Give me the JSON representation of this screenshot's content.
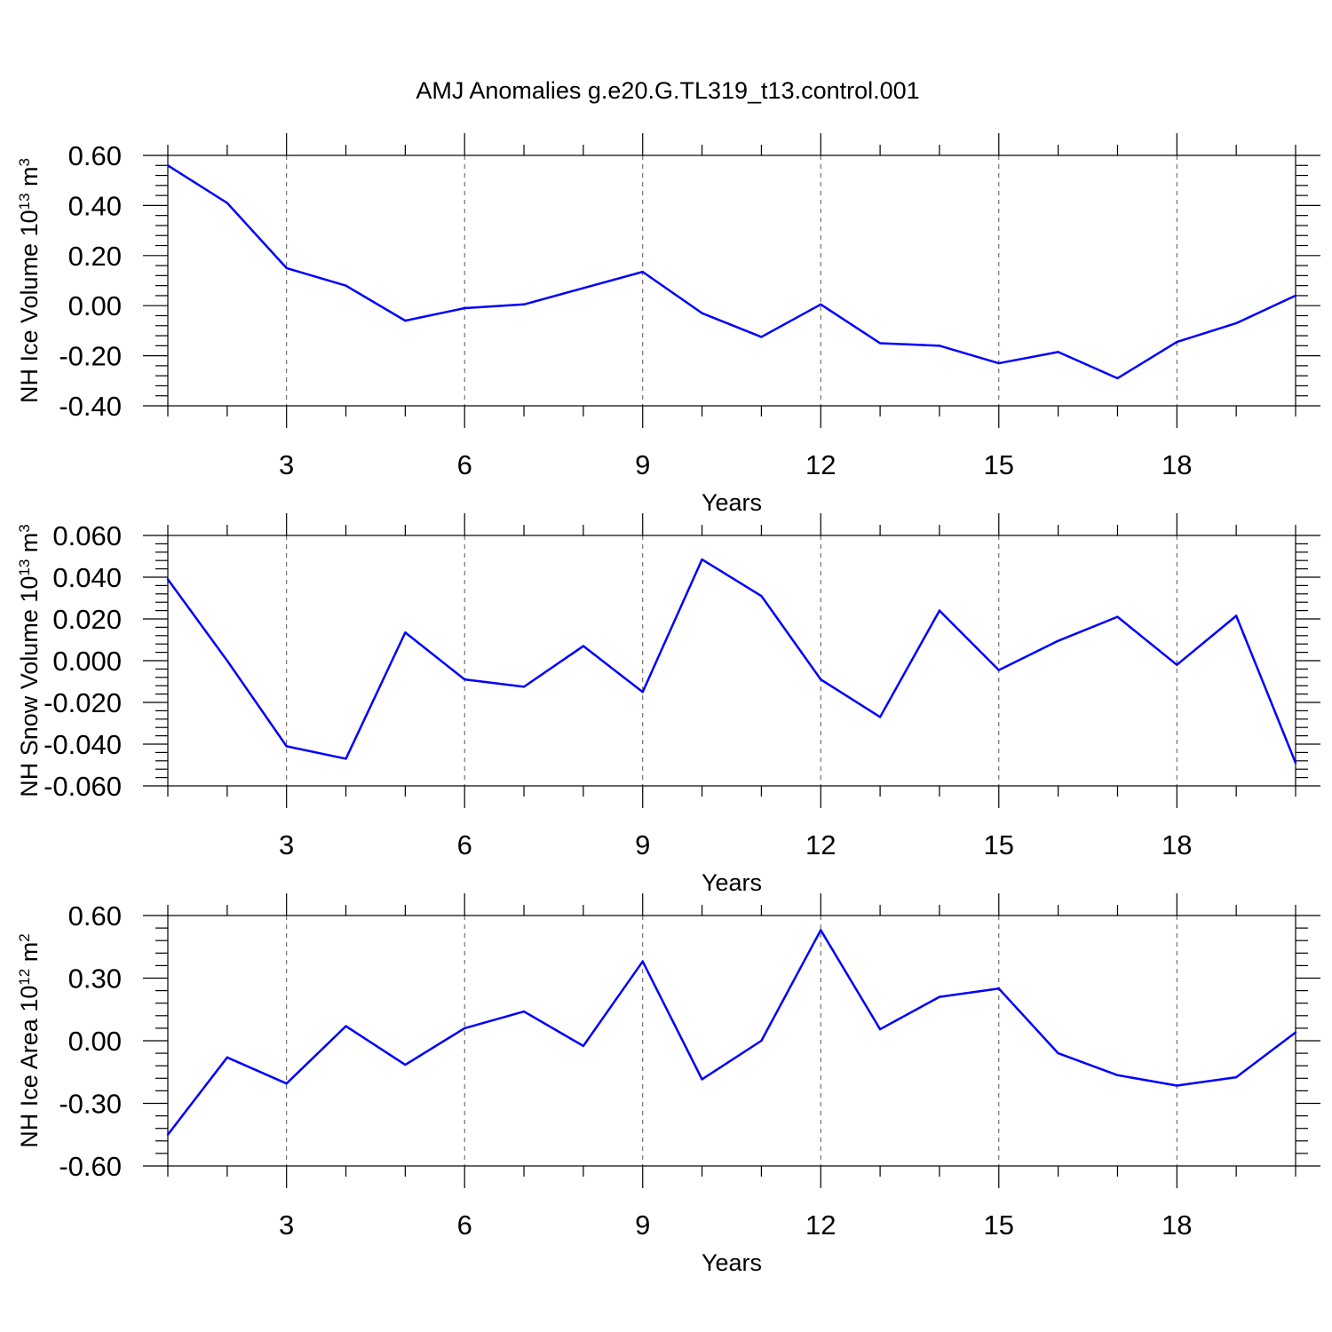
{
  "title": "AMJ Anomalies g.e20.G.TL319_t13.control.001",
  "colors": {
    "line": "#0000ff",
    "axis": "#000000",
    "grid": "#555555"
  },
  "chart_data": [
    {
      "type": "line",
      "xlabel": "Years",
      "ylabel": {
        "prefix": "NH Ice Volume 10",
        "exp": "13",
        "unit": " m",
        "unit_exp": "3"
      },
      "xlim": [
        1,
        20
      ],
      "ylim": [
        -0.4,
        0.6
      ],
      "x_ticks": [
        3,
        6,
        9,
        12,
        15,
        18
      ],
      "x_tick_labels": [
        "3",
        "6",
        "9",
        "12",
        "15",
        "18"
      ],
      "y_ticks": [
        0.6,
        0.4,
        0.2,
        0.0,
        -0.2,
        -0.4
      ],
      "y_tick_labels": [
        "0.60",
        "0.40",
        "0.20",
        "0.00",
        "-0.20",
        "-0.40"
      ],
      "x": [
        1,
        2,
        3,
        4,
        5,
        6,
        7,
        8,
        9,
        10,
        11,
        12,
        13,
        14,
        15,
        16,
        17,
        18,
        19,
        20
      ],
      "values": [
        0.56,
        0.41,
        0.15,
        0.08,
        -0.06,
        -0.01,
        0.005,
        0.07,
        0.135,
        -0.03,
        -0.125,
        0.005,
        -0.15,
        -0.16,
        -0.23,
        -0.185,
        -0.29,
        -0.145,
        -0.07,
        0.04
      ],
      "grid": "dashed vertical lines at major x ticks"
    },
    {
      "type": "line",
      "xlabel": "Years",
      "ylabel": {
        "prefix": "NH Snow Volume 10",
        "exp": "13",
        "unit": " m",
        "unit_exp": "3"
      },
      "xlim": [
        1,
        20
      ],
      "ylim": [
        -0.06,
        0.06
      ],
      "x_ticks": [
        3,
        6,
        9,
        12,
        15,
        18
      ],
      "x_tick_labels": [
        "3",
        "6",
        "9",
        "12",
        "15",
        "18"
      ],
      "y_ticks": [
        0.06,
        0.04,
        0.02,
        0.0,
        -0.02,
        -0.04,
        -0.06
      ],
      "y_tick_labels": [
        "0.060",
        "0.040",
        "0.020",
        "0.000",
        "-0.020",
        "-0.040",
        "-0.060"
      ],
      "x": [
        1,
        2,
        3,
        4,
        5,
        6,
        7,
        8,
        9,
        10,
        11,
        12,
        13,
        14,
        15,
        16,
        17,
        18,
        19,
        20
      ],
      "values": [
        0.039,
        0.0,
        -0.041,
        -0.047,
        0.0135,
        -0.009,
        -0.0125,
        0.007,
        -0.015,
        0.0485,
        0.031,
        -0.009,
        -0.027,
        0.024,
        -0.0045,
        0.0095,
        0.021,
        -0.002,
        0.0215,
        -0.049
      ],
      "grid": "dashed vertical lines at major x ticks"
    },
    {
      "type": "line",
      "xlabel": "Years",
      "ylabel": {
        "prefix": "NH Ice Area 10",
        "exp": "12",
        "unit": " m",
        "unit_exp": "2"
      },
      "xlim": [
        1,
        20
      ],
      "ylim": [
        -0.6,
        0.6
      ],
      "x_ticks": [
        3,
        6,
        9,
        12,
        15,
        18
      ],
      "x_tick_labels": [
        "3",
        "6",
        "9",
        "12",
        "15",
        "18"
      ],
      "y_ticks": [
        0.6,
        0.3,
        0.0,
        -0.3,
        -0.6
      ],
      "y_tick_labels": [
        "0.60",
        "0.30",
        "0.00",
        "-0.30",
        "-0.60"
      ],
      "x": [
        1,
        2,
        3,
        4,
        5,
        6,
        7,
        8,
        9,
        10,
        11,
        12,
        13,
        14,
        15,
        16,
        17,
        18,
        19,
        20
      ],
      "values": [
        -0.45,
        -0.08,
        -0.205,
        0.07,
        -0.115,
        0.06,
        0.14,
        -0.025,
        0.38,
        -0.185,
        0.0,
        0.53,
        0.055,
        0.21,
        0.25,
        -0.06,
        -0.165,
        -0.215,
        -0.175,
        0.04
      ],
      "grid": "dashed vertical lines at major x ticks"
    }
  ]
}
